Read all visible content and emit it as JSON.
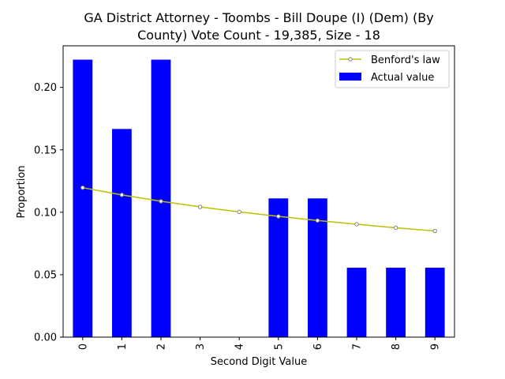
{
  "chart_data": {
    "type": "bar",
    "title_lines": [
      "GA District Attorney - Toombs - Bill Doupe (I) (Dem) (By",
      "County) Vote Count - 19,385, Size - 18"
    ],
    "xlabel": "Second Digit Value",
    "ylabel": "Proportion",
    "categories": [
      "0",
      "1",
      "2",
      "3",
      "4",
      "5",
      "6",
      "7",
      "8",
      "9"
    ],
    "ylim": [
      0,
      0.2333
    ],
    "yticks": [
      0.0,
      0.05,
      0.1,
      0.15,
      0.2
    ],
    "ytick_labels": [
      "0.00",
      "0.05",
      "0.10",
      "0.15",
      "0.20"
    ],
    "legend_position": "top-right",
    "series": [
      {
        "name": "Benford's law",
        "kind": "line",
        "color": "#bfbf00",
        "values": [
          0.1197,
          0.1139,
          0.1088,
          0.1043,
          0.1003,
          0.0967,
          0.0934,
          0.0904,
          0.0876,
          0.085
        ]
      },
      {
        "name": "Actual value",
        "kind": "bar",
        "color": "#0000ff",
        "values": [
          0.2222,
          0.1667,
          0.2222,
          0.0,
          0.0,
          0.1111,
          0.1111,
          0.0556,
          0.0556,
          0.0556
        ]
      }
    ]
  }
}
